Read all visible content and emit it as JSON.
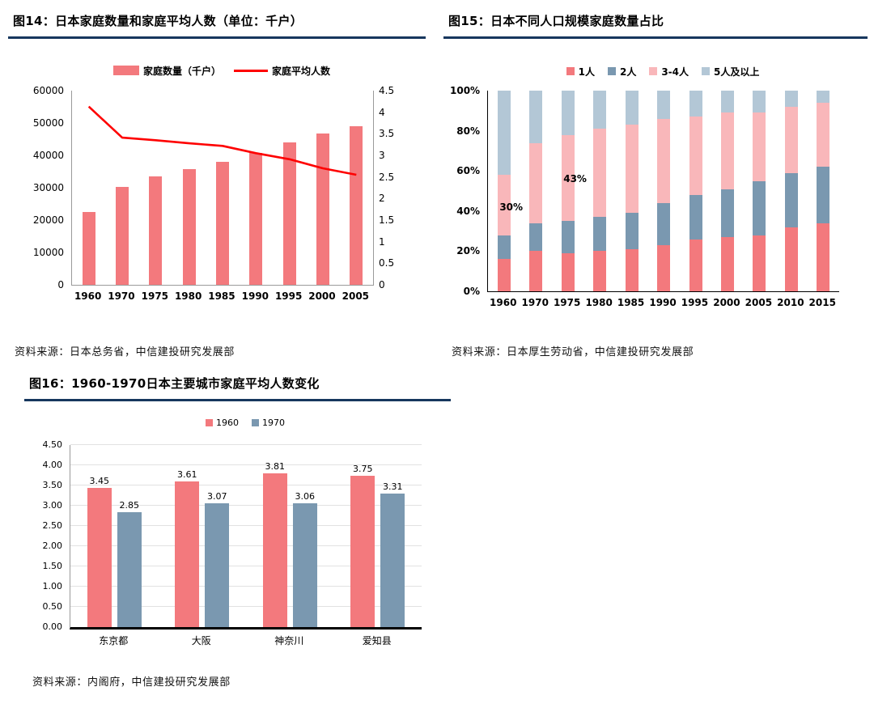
{
  "colors": {
    "underline": "#17375e",
    "pink": "#f3797d",
    "red": "#fe0000",
    "blue_gray": "#7a98b0",
    "light_pink": "#f9b7ba",
    "light_blue": "#b3c7d6"
  },
  "chart_data": [
    {
      "id": "fig14",
      "type": "bar-line-combo",
      "title": "图14：日本家庭数量和家庭平均人数（单位：千户）",
      "source": "资料来源：日本总务省，中信建投研究发展部",
      "categories": [
        "1960",
        "1970",
        "1975",
        "1980",
        "1985",
        "1990",
        "1995",
        "2000",
        "2005"
      ],
      "series": [
        {
          "name": "家庭数量（千户）",
          "type": "bar",
          "axis": "left",
          "color": "#f3797d",
          "values": [
            22500,
            30300,
            33600,
            35800,
            38000,
            40700,
            43900,
            46800,
            49100
          ]
        },
        {
          "name": "家庭平均人数",
          "type": "line",
          "axis": "right",
          "color": "#fe0000",
          "values": [
            4.13,
            3.41,
            3.35,
            3.28,
            3.22,
            3.05,
            2.91,
            2.7,
            2.55
          ]
        }
      ],
      "left_axis": {
        "min": 0,
        "max": 60000,
        "step": 10000,
        "ticks": [
          "0",
          "10000",
          "20000",
          "30000",
          "40000",
          "50000",
          "60000"
        ]
      },
      "right_axis": {
        "min": 0,
        "max": 4.5,
        "step": 0.5,
        "ticks": [
          "0",
          "0.5",
          "1",
          "1.5",
          "2",
          "2.5",
          "3",
          "3.5",
          "4",
          "4.5"
        ]
      },
      "grid": false,
      "legend_position": "top"
    },
    {
      "id": "fig15",
      "type": "stacked-bar-100",
      "title": "图15：日本不同人口规模家庭数量占比",
      "source": "资料来源：日本厚生劳动省，中信建投研究发展部",
      "categories": [
        "1960",
        "1970",
        "1975",
        "1980",
        "1985",
        "1990",
        "1995",
        "2000",
        "2005",
        "2010",
        "2015"
      ],
      "series": [
        {
          "name": "1人",
          "color": "#f3797d",
          "values": [
            16,
            20,
            19,
            20,
            21,
            23,
            26,
            27,
            28,
            32,
            34
          ]
        },
        {
          "name": "2人",
          "color": "#7a98b0",
          "values": [
            12,
            14,
            16,
            17,
            18,
            21,
            22,
            24,
            27,
            27,
            28
          ]
        },
        {
          "name": "3-4人",
          "color": "#f9b7ba",
          "values": [
            30,
            40,
            43,
            44,
            44,
            42,
            39,
            38,
            34,
            33,
            32
          ]
        },
        {
          "name": "5人及以上",
          "color": "#b3c7d6",
          "values": [
            42,
            26,
            22,
            19,
            17,
            14,
            13,
            11,
            11,
            8,
            6
          ]
        }
      ],
      "y_axis": {
        "min": 0,
        "max": 100,
        "step": 20,
        "ticks": [
          "0%",
          "20%",
          "40%",
          "60%",
          "80%",
          "100%"
        ]
      },
      "annotations": [
        {
          "text": "30%",
          "cat_index": 0,
          "y_pct": 42,
          "dx": 9
        },
        {
          "text": "43%",
          "cat_index": 2,
          "y_pct": 56,
          "dx": 9
        }
      ],
      "grid": false,
      "legend_position": "top"
    },
    {
      "id": "fig16",
      "type": "grouped-bar",
      "title": "图16：1960-1970日本主要城市家庭平均人数变化",
      "source": "资料来源：内阁府，中信建投研究发展部",
      "categories": [
        "东京都",
        "大阪",
        "神奈川",
        "爱知县"
      ],
      "series": [
        {
          "name": "1960",
          "color": "#f3797d",
          "values": [
            3.45,
            3.61,
            3.81,
            3.75
          ]
        },
        {
          "name": "1970",
          "color": "#7a98b0",
          "values": [
            2.85,
            3.07,
            3.06,
            3.31
          ]
        }
      ],
      "y_axis": {
        "min": 0,
        "max": 4.5,
        "step": 0.5,
        "ticks": [
          "0.00",
          "0.50",
          "1.00",
          "1.50",
          "2.00",
          "2.50",
          "3.00",
          "3.50",
          "4.00",
          "4.50"
        ]
      },
      "show_value_labels": true,
      "grid": true,
      "legend_position": "top"
    }
  ]
}
